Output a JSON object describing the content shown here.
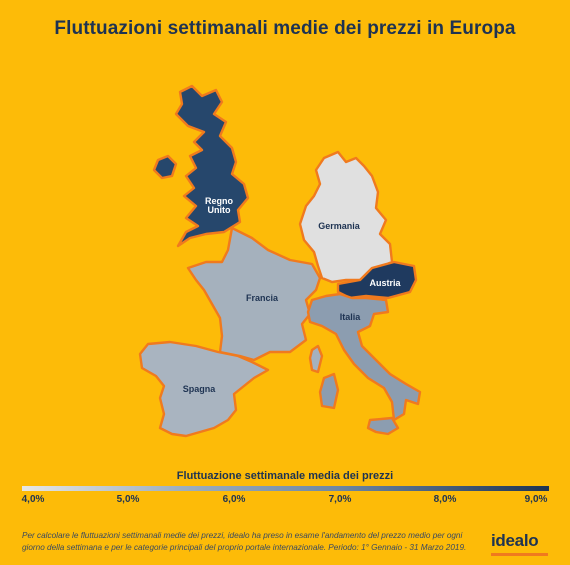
{
  "title": "Fluttuazioni settimanali medie dei prezzi in Europa",
  "countries": {
    "uk": {
      "name": "Regno Unito",
      "label_line1": "Regno",
      "label_line2": "Unito",
      "value": 9.0,
      "color": "#26476C"
    },
    "germany": {
      "name": "Germania",
      "value": 4.0,
      "color": "#E0E0E0"
    },
    "austria": {
      "name": "Austria",
      "value": 9.0,
      "color": "#1F3A5F"
    },
    "france": {
      "name": "Francia",
      "value": 5.8,
      "color": "#A5B1BD"
    },
    "italy": {
      "name": "Italia",
      "value": 6.5,
      "color": "#8C9DB0"
    },
    "spain": {
      "name": "Spagna",
      "value": 5.7,
      "color": "#A9B4C0"
    }
  },
  "legend": {
    "title": "Fluttuazione settimanale media dei prezzi",
    "ticks": [
      "4,0%",
      "5,0%",
      "6,0%",
      "7,0%",
      "8,0%",
      "9,0%"
    ],
    "min_color": "#E7E7E7",
    "max_color": "#1E3352"
  },
  "footnote": "Per calcolare le fluttuazioni settimanali medie dei prezzi, idealo ha preso in esame l'andamento del prezzo medio per ogni giorno della settimana e per le categorie principali del proprio portale internazionale. Periodo: 1° Gennaio - 31 Marzo 2019.",
  "logo_text": "idealo",
  "colors": {
    "background": "#FDBB08",
    "border": "#F07A1E",
    "title": "#1E3352"
  }
}
